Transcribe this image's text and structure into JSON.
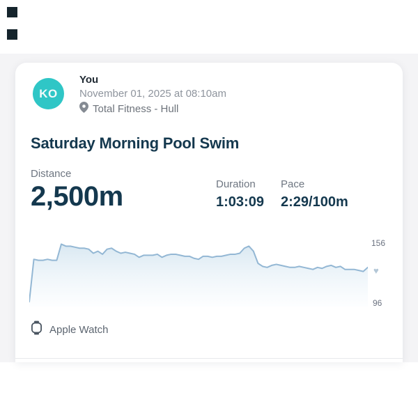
{
  "post": {
    "author": "You",
    "avatar_initials": "KO",
    "timestamp": "November 01, 2025 at 08:10am",
    "location": "Total Fitness - Hull",
    "title": "Saturday Morning Pool Swim",
    "stats": {
      "distance": {
        "label": "Distance",
        "value": "2,500m"
      },
      "duration": {
        "label": "Duration",
        "value": "1:03:09"
      },
      "pace": {
        "label": "Pace",
        "value": "2:29/100m"
      }
    },
    "source": {
      "label": "Apple Watch"
    }
  },
  "colors": {
    "avatar_bg": "#2fc6c6",
    "avatar_text": "#f2fafa",
    "heading_text": "#14384e",
    "muted_text": "#6e7681",
    "timestamp_text": "#8e949d",
    "page_stripe_bg": "#f4f4f6",
    "card_bg": "#ffffff",
    "chart_line": "#93b7d4",
    "chart_fill_top": "#d7e7f1",
    "chart_fill_bottom": "#fbfdff",
    "heart_icon": "#b3c7d7",
    "corner_marker": "#15242c"
  },
  "chart_data": {
    "type": "area",
    "metric": "heart_rate_bpm",
    "title": "",
    "xlabel": "",
    "ylabel": "",
    "ylim": [
      96,
      156
    ],
    "ymax_label": "156",
    "ymin_label": "96",
    "grid": false,
    "legend": "none",
    "values": [
      98,
      140,
      139,
      139,
      140,
      139,
      139,
      155,
      153,
      153,
      152,
      151,
      151,
      150,
      146,
      148,
      145,
      150,
      151,
      148,
      146,
      147,
      146,
      145,
      142,
      144,
      144,
      144,
      145,
      142,
      144,
      145,
      145,
      144,
      143,
      143,
      141,
      140,
      143,
      143,
      142,
      143,
      143,
      144,
      145,
      145,
      146,
      151,
      153,
      148,
      136,
      133,
      132,
      134,
      135,
      134,
      133,
      132,
      132,
      133,
      132,
      131,
      130,
      132,
      131,
      133,
      134,
      132,
      133,
      130,
      130,
      130,
      129,
      128,
      132
    ]
  }
}
